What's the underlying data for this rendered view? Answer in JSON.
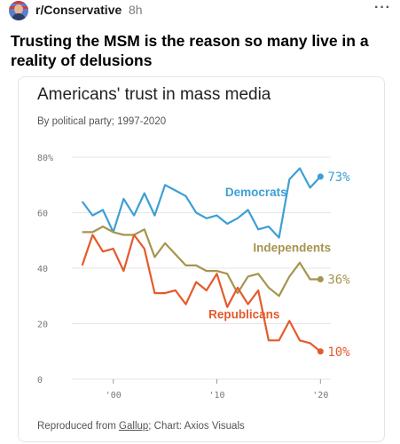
{
  "post": {
    "subreddit": "r/Conservative",
    "age": "8h",
    "more_label": "···",
    "title": "Trusting the MSM is the reason so many live in a reality of delusions"
  },
  "chart_card": {
    "footer_prefix": "Reproduced from ",
    "footer_link": "Gallup",
    "footer_suffix": "; Chart: Axios Visuals"
  },
  "chart_data": {
    "type": "line",
    "title": "Americans' trust in mass media",
    "subtitle": "By political party; 1997-2020",
    "xlabel": "",
    "ylabel": "",
    "xlim": [
      1996,
      2021
    ],
    "ylim": [
      0,
      80
    ],
    "y_ticks": [
      "0",
      "20",
      "40",
      "60",
      "80%"
    ],
    "y_tick_values": [
      0,
      20,
      40,
      60,
      80
    ],
    "x_ticks": [
      "'00",
      "'10",
      "'20"
    ],
    "x_tick_values": [
      2000,
      2010,
      2020
    ],
    "grid": true,
    "legend": "direct labels on lines",
    "series": [
      {
        "name": "Democrats",
        "color": "#3d9fd4",
        "end_label": "73%",
        "x": [
          1997,
          1998,
          1999,
          2000,
          2001,
          2002,
          2003,
          2004,
          2005,
          2006,
          2007,
          2008,
          2009,
          2010,
          2011,
          2012,
          2013,
          2014,
          2015,
          2016,
          2017,
          2018,
          2019,
          2020
        ],
        "values": [
          64,
          59,
          61,
          53,
          65,
          59,
          67,
          59,
          70,
          68,
          66,
          60,
          58,
          59,
          56,
          58,
          61,
          54,
          55,
          51,
          72,
          76,
          69,
          73
        ]
      },
      {
        "name": "Independents",
        "color": "#a6944f",
        "end_label": "36%",
        "x": [
          1997,
          1998,
          1999,
          2000,
          2001,
          2002,
          2003,
          2004,
          2005,
          2006,
          2007,
          2008,
          2009,
          2010,
          2011,
          2012,
          2013,
          2014,
          2015,
          2016,
          2017,
          2018,
          2019,
          2020
        ],
        "values": [
          53,
          53,
          55,
          53,
          52,
          52,
          54,
          44,
          49,
          45,
          41,
          41,
          39,
          39,
          38,
          31,
          37,
          38,
          33,
          30,
          37,
          42,
          36,
          36
        ]
      },
      {
        "name": "Republicans",
        "color": "#e55a2b",
        "end_label": "10%",
        "x": [
          1997,
          1998,
          1999,
          2000,
          2001,
          2002,
          2003,
          2004,
          2005,
          2006,
          2007,
          2008,
          2009,
          2010,
          2011,
          2012,
          2013,
          2014,
          2015,
          2016,
          2017,
          2018,
          2019,
          2020
        ],
        "values": [
          41,
          52,
          46,
          47,
          39,
          52,
          47,
          31,
          31,
          32,
          27,
          35,
          32,
          38,
          26,
          33,
          27,
          32,
          14,
          14,
          21,
          14,
          13,
          10
        ]
      }
    ]
  }
}
